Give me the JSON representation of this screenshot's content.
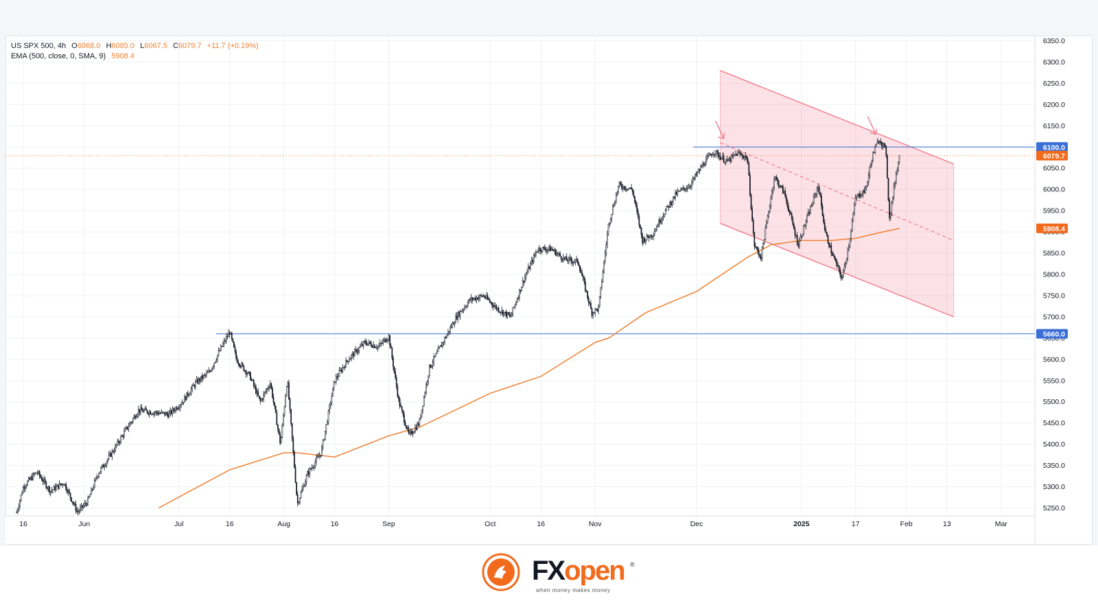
{
  "legend": {
    "symbol": "US SPX 500, 4h",
    "o_label": "O",
    "o": "6068.0",
    "h_label": "H",
    "h": "6085.0",
    "l_label": "L",
    "l": "6067.5",
    "c_label": "C",
    "c": "6079.7",
    "change": "+11.7 (+0.19%)",
    "ema_label": "EMA (500, close, 0, SMA, 9)",
    "ema_value": "5908.4"
  },
  "colors": {
    "candle": "#131722",
    "ema": "#f08030",
    "channel_fill": "rgba(242,108,128,0.20)",
    "channel_line": "#f07a8a",
    "level_line": "#3a6fd8",
    "last_price": "#f26a1b",
    "grid": "#eef0f3",
    "axis_text": "#131722"
  },
  "chart_data": {
    "type": "candlestick",
    "timeframe": "4h",
    "ylim": [
      5225,
      6360
    ],
    "y_ticks": [
      5250,
      5300,
      5350,
      5400,
      5450,
      5500,
      5550,
      5600,
      5650,
      5700,
      5750,
      5800,
      5850,
      5900,
      5950,
      6000,
      6050,
      6100,
      6150,
      6200,
      6250,
      6300,
      6350
    ],
    "x_ticks": [
      "16",
      "Jun",
      "Jul",
      "16",
      "Aug",
      "16",
      "Sep",
      "Oct",
      "16",
      "Nov",
      "Dec",
      "2025",
      "17",
      "Feb",
      "13",
      "Mar"
    ],
    "x_tick_dates": [
      "2024-05-16",
      "2024-06-03",
      "2024-07-01",
      "2024-07-16",
      "2024-08-01",
      "2024-08-16",
      "2024-09-01",
      "2024-10-01",
      "2024-10-16",
      "2024-11-01",
      "2024-12-01",
      "2025-01-01",
      "2025-01-17",
      "2025-02-01",
      "2025-02-13",
      "2025-03-01"
    ],
    "price_path": [
      [
        "2024-05-14",
        5240
      ],
      [
        "2024-05-16",
        5300
      ],
      [
        "2024-05-20",
        5335
      ],
      [
        "2024-05-24",
        5290
      ],
      [
        "2024-05-28",
        5310
      ],
      [
        "2024-06-01",
        5240
      ],
      [
        "2024-06-04",
        5265
      ],
      [
        "2024-06-07",
        5330
      ],
      [
        "2024-06-12",
        5390
      ],
      [
        "2024-06-15",
        5430
      ],
      [
        "2024-06-19",
        5480
      ],
      [
        "2024-06-24",
        5475
      ],
      [
        "2024-06-28",
        5470
      ],
      [
        "2024-07-02",
        5500
      ],
      [
        "2024-07-06",
        5545
      ],
      [
        "2024-07-10",
        5570
      ],
      [
        "2024-07-13",
        5620
      ],
      [
        "2024-07-16",
        5665
      ],
      [
        "2024-07-18",
        5600
      ],
      [
        "2024-07-22",
        5560
      ],
      [
        "2024-07-25",
        5500
      ],
      [
        "2024-07-28",
        5545
      ],
      [
        "2024-07-31",
        5400
      ],
      [
        "2024-08-02",
        5555
      ],
      [
        "2024-08-05",
        5260
      ],
      [
        "2024-08-08",
        5330
      ],
      [
        "2024-08-12",
        5380
      ],
      [
        "2024-08-16",
        5550
      ],
      [
        "2024-08-20",
        5600
      ],
      [
        "2024-08-25",
        5640
      ],
      [
        "2024-08-29",
        5630
      ],
      [
        "2024-09-01",
        5655
      ],
      [
        "2024-09-04",
        5500
      ],
      [
        "2024-09-07",
        5420
      ],
      [
        "2024-09-10",
        5450
      ],
      [
        "2024-09-13",
        5580
      ],
      [
        "2024-09-17",
        5640
      ],
      [
        "2024-09-21",
        5700
      ],
      [
        "2024-09-25",
        5740
      ],
      [
        "2024-09-29",
        5750
      ],
      [
        "2024-10-03",
        5720
      ],
      [
        "2024-10-07",
        5700
      ],
      [
        "2024-10-11",
        5790
      ],
      [
        "2024-10-15",
        5860
      ],
      [
        "2024-10-19",
        5860
      ],
      [
        "2024-10-23",
        5835
      ],
      [
        "2024-10-27",
        5830
      ],
      [
        "2024-10-31",
        5710
      ],
      [
        "2024-11-02",
        5720
      ],
      [
        "2024-11-05",
        5920
      ],
      [
        "2024-11-08",
        6010
      ],
      [
        "2024-11-12",
        6000
      ],
      [
        "2024-11-15",
        5880
      ],
      [
        "2024-11-18",
        5895
      ],
      [
        "2024-11-21",
        5940
      ],
      [
        "2024-11-25",
        5990
      ],
      [
        "2024-11-29",
        6010
      ],
      [
        "2024-12-03",
        6060
      ],
      [
        "2024-12-06",
        6090
      ],
      [
        "2024-12-10",
        6065
      ],
      [
        "2024-12-13",
        6085
      ],
      [
        "2024-12-16",
        6075
      ],
      [
        "2024-12-18",
        5870
      ],
      [
        "2024-12-20",
        5840
      ],
      [
        "2024-12-24",
        6030
      ],
      [
        "2024-12-27",
        5990
      ],
      [
        "2024-12-31",
        5870
      ],
      [
        "2025-01-03",
        5940
      ],
      [
        "2025-01-06",
        6010
      ],
      [
        "2025-01-08",
        5900
      ],
      [
        "2025-01-10",
        5850
      ],
      [
        "2025-01-13",
        5790
      ],
      [
        "2025-01-15",
        5870
      ],
      [
        "2025-01-17",
        5980
      ],
      [
        "2025-01-20",
        6000
      ],
      [
        "2025-01-22",
        6080
      ],
      [
        "2025-01-24",
        6120
      ],
      [
        "2025-01-26",
        6090
      ],
      [
        "2025-01-27",
        5930
      ],
      [
        "2025-01-29",
        6040
      ],
      [
        "2025-01-30",
        6079.7
      ]
    ],
    "ema": {
      "name": "EMA (500, close, 0, SMA, 9)",
      "last_value": 5908.4,
      "path": [
        [
          "2024-06-25",
          5250
        ],
        [
          "2024-07-16",
          5340
        ],
        [
          "2024-08-01",
          5380
        ],
        [
          "2024-08-05",
          5380
        ],
        [
          "2024-08-16",
          5370
        ],
        [
          "2024-09-01",
          5420
        ],
        [
          "2024-09-10",
          5440
        ],
        [
          "2024-10-01",
          5520
        ],
        [
          "2024-10-16",
          5560
        ],
        [
          "2024-11-01",
          5640
        ],
        [
          "2024-11-05",
          5650
        ],
        [
          "2024-11-16",
          5710
        ],
        [
          "2024-12-01",
          5760
        ],
        [
          "2024-12-16",
          5840
        ],
        [
          "2024-12-23",
          5870
        ],
        [
          "2025-01-01",
          5880
        ],
        [
          "2025-01-10",
          5880
        ],
        [
          "2025-01-17",
          5885
        ],
        [
          "2025-01-25",
          5900
        ],
        [
          "2025-01-30",
          5908.4
        ]
      ]
    },
    "levels": [
      {
        "price": 6100.0,
        "label": "6100.0",
        "from": "2024-11-30"
      },
      {
        "price": 5660.0,
        "label": "5660.0",
        "from": "2024-07-12"
      }
    ],
    "last_price": {
      "value": 6079.7,
      "label": "6079.7"
    },
    "ema_axis_label": "5908.4",
    "channel": {
      "start": "2024-12-08",
      "end": "2025-02-15",
      "upper": [
        6280,
        6060
      ],
      "mid": [
        6110,
        5880
      ],
      "lower": [
        5920,
        5700
      ]
    },
    "arrows": [
      {
        "date": "2024-12-09",
        "price": 6120
      },
      {
        "date": "2025-01-23",
        "price": 6130
      }
    ]
  }
}
